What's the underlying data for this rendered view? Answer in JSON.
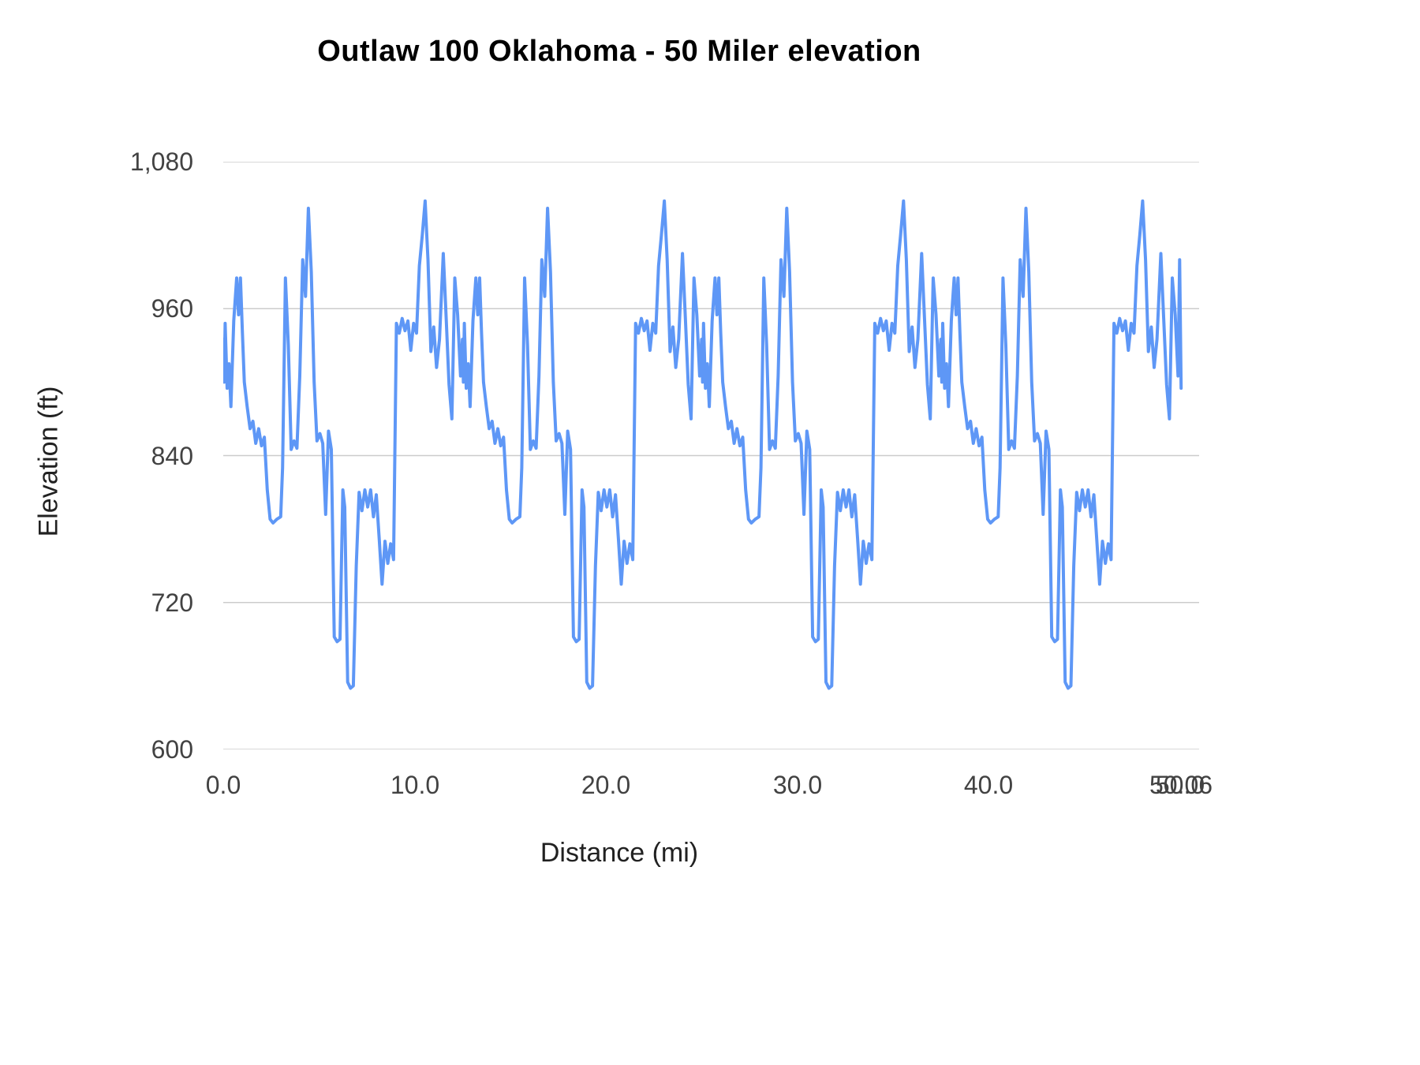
{
  "chart_data": {
    "type": "line",
    "title": "Outlaw 100 Oklahoma - 50 Miler elevation",
    "xlabel": "Distance (mi)",
    "ylabel": "Elevation (ft)",
    "xlim": [
      0,
      51
    ],
    "ylim": [
      600,
      1080
    ],
    "grid": "horizontal",
    "legend": "none",
    "background_color": "#ffffff",
    "line_color": "#5e97f6",
    "line_width": 4,
    "gridline_color": "#cccccc",
    "x_ticks": [
      {
        "value": 0,
        "label": "0.0"
      },
      {
        "value": 10,
        "label": "10.0"
      },
      {
        "value": 20,
        "label": "20.0"
      },
      {
        "value": 30,
        "label": "30.0"
      },
      {
        "value": 40,
        "label": "40.0"
      },
      {
        "value": 50,
        "label": "50.0"
      },
      {
        "value": 50.06,
        "label": "50.06"
      }
    ],
    "y_ticks": [
      {
        "value": 600,
        "label": "600"
      },
      {
        "value": 720,
        "label": "720"
      },
      {
        "value": 840,
        "label": "840"
      },
      {
        "value": 960,
        "label": "960"
      },
      {
        "value": 1080,
        "label": "1,080"
      }
    ],
    "series": [
      {
        "name": "Elevation",
        "construction": "Course is four repeated ~12.5 mi loops: full series = loop_points (dx, elevation_ft) shifted by each loop_offset, followed by tail_points. Values estimated from gridlines.",
        "loop_offsets": [
          0,
          12.5,
          25,
          37.5
        ],
        "loop_points": [
          [
            0,
            935
          ],
          [
            0.05,
            900
          ],
          [
            0.1,
            948
          ],
          [
            0.2,
            895
          ],
          [
            0.3,
            915
          ],
          [
            0.4,
            880
          ],
          [
            0.55,
            950
          ],
          [
            0.7,
            985
          ],
          [
            0.8,
            955
          ],
          [
            0.9,
            985
          ],
          [
            1,
            940
          ],
          [
            1.1,
            900
          ],
          [
            1.25,
            880
          ],
          [
            1.4,
            862
          ],
          [
            1.55,
            868
          ],
          [
            1.7,
            850
          ],
          [
            1.85,
            862
          ],
          [
            2,
            848
          ],
          [
            2.15,
            855
          ],
          [
            2.3,
            812
          ],
          [
            2.45,
            788
          ],
          [
            2.6,
            785
          ],
          [
            2.8,
            788
          ],
          [
            3,
            790
          ],
          [
            3.1,
            830
          ],
          [
            3.25,
            985
          ],
          [
            3.4,
            930
          ],
          [
            3.55,
            845
          ],
          [
            3.7,
            852
          ],
          [
            3.85,
            846
          ],
          [
            4,
            905
          ],
          [
            4.15,
            1000
          ],
          [
            4.3,
            970
          ],
          [
            4.45,
            1042
          ],
          [
            4.6,
            990
          ],
          [
            4.75,
            900
          ],
          [
            4.9,
            852
          ],
          [
            5.05,
            858
          ],
          [
            5.2,
            850
          ],
          [
            5.35,
            792
          ],
          [
            5.5,
            860
          ],
          [
            5.65,
            845
          ],
          [
            5.8,
            692
          ],
          [
            5.95,
            688
          ],
          [
            6.1,
            690
          ],
          [
            6.25,
            812
          ],
          [
            6.35,
            798
          ],
          [
            6.5,
            655
          ],
          [
            6.65,
            650
          ],
          [
            6.8,
            652
          ],
          [
            6.95,
            750
          ],
          [
            7.1,
            810
          ],
          [
            7.25,
            795
          ],
          [
            7.4,
            812
          ],
          [
            7.55,
            798
          ],
          [
            7.7,
            812
          ],
          [
            7.85,
            790
          ],
          [
            8,
            808
          ],
          [
            8.15,
            772
          ],
          [
            8.3,
            735
          ],
          [
            8.45,
            770
          ],
          [
            8.6,
            752
          ],
          [
            8.75,
            768
          ],
          [
            8.9,
            755
          ],
          [
            9.05,
            948
          ],
          [
            9.2,
            940
          ],
          [
            9.35,
            952
          ],
          [
            9.5,
            942
          ],
          [
            9.65,
            950
          ],
          [
            9.8,
            926
          ],
          [
            9.95,
            948
          ],
          [
            10.1,
            940
          ],
          [
            10.25,
            995
          ],
          [
            10.4,
            1020
          ],
          [
            10.55,
            1048
          ],
          [
            10.7,
            1000
          ],
          [
            10.85,
            925
          ],
          [
            11,
            945
          ],
          [
            11.15,
            912
          ],
          [
            11.3,
            935
          ],
          [
            11.5,
            1005
          ],
          [
            11.65,
            952
          ],
          [
            11.8,
            898
          ],
          [
            11.95,
            870
          ],
          [
            12.1,
            985
          ],
          [
            12.25,
            955
          ],
          [
            12.4,
            905
          ]
        ],
        "tail_points": [
          [
            49.98,
            1000
          ],
          [
            50.06,
            895
          ]
        ]
      }
    ]
  }
}
